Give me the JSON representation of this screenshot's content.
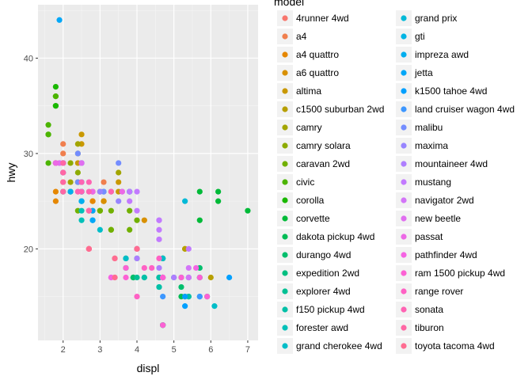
{
  "chart_data": {
    "type": "scatter",
    "title": "",
    "xlabel": "displ",
    "ylabel": "hwy",
    "xlim": [
      1.32,
      7.28
    ],
    "ylim": [
      10.4,
      45.6
    ],
    "x_ticks": [
      2,
      3,
      4,
      5,
      6,
      7
    ],
    "y_ticks": [
      20,
      30,
      40
    ],
    "grid": true,
    "legend_title": "model",
    "legend_placement": "right",
    "series": [
      {
        "name": "4runner 4wd",
        "color": "#F8766D",
        "points": [
          [
            2.7,
            20
          ],
          [
            2.7,
            20
          ],
          [
            3.4,
            19
          ],
          [
            3.4,
            17
          ],
          [
            4.0,
            20
          ],
          [
            4.7,
            17
          ]
        ]
      },
      {
        "name": "a4",
        "color": "#F07F4E",
        "points": [
          [
            1.8,
            29
          ],
          [
            1.8,
            29
          ],
          [
            2.0,
            31
          ],
          [
            2.0,
            30
          ],
          [
            2.8,
            26
          ],
          [
            2.8,
            26
          ],
          [
            3.1,
            27
          ]
        ]
      },
      {
        "name": "a4 quattro",
        "color": "#E58700",
        "points": [
          [
            1.8,
            26
          ],
          [
            1.8,
            25
          ],
          [
            2.0,
            28
          ],
          [
            2.0,
            27
          ],
          [
            2.8,
            25
          ],
          [
            2.8,
            25
          ],
          [
            3.1,
            25
          ],
          [
            3.1,
            25
          ]
        ]
      },
      {
        "name": "a6 quattro",
        "color": "#D89000",
        "points": [
          [
            2.8,
            24
          ],
          [
            3.1,
            25
          ],
          [
            4.2,
            23
          ]
        ]
      },
      {
        "name": "altima",
        "color": "#C99800",
        "points": [
          [
            2.4,
            27
          ],
          [
            2.4,
            29
          ],
          [
            2.5,
            31
          ],
          [
            2.5,
            32
          ],
          [
            3.5,
            27
          ],
          [
            3.5,
            26
          ]
        ]
      },
      {
        "name": "c1500 suburban 2wd",
        "color": "#B79F00",
        "points": [
          [
            5.3,
            20
          ],
          [
            5.3,
            15
          ],
          [
            5.3,
            20
          ],
          [
            5.7,
            17
          ],
          [
            6.0,
            17
          ]
        ]
      },
      {
        "name": "camry",
        "color": "#A3A500",
        "points": [
          [
            2.2,
            26
          ],
          [
            2.2,
            27
          ],
          [
            2.4,
            30
          ],
          [
            2.4,
            31
          ],
          [
            3.0,
            26
          ],
          [
            3.0,
            26
          ],
          [
            3.5,
            28
          ]
        ]
      },
      {
        "name": "camry solara",
        "color": "#8DAB00",
        "points": [
          [
            2.2,
            26
          ],
          [
            2.2,
            29
          ],
          [
            2.4,
            28
          ],
          [
            2.4,
            27
          ],
          [
            3.0,
            24
          ],
          [
            3.0,
            24
          ],
          [
            3.3,
            26
          ]
        ]
      },
      {
        "name": "caravan 2wd",
        "color": "#71B000",
        "points": [
          [
            2.4,
            24
          ],
          [
            3.0,
            24
          ],
          [
            3.3,
            22
          ],
          [
            3.3,
            22
          ],
          [
            3.3,
            24
          ],
          [
            3.8,
            24
          ],
          [
            3.8,
            22
          ],
          [
            4.0,
            23
          ]
        ]
      },
      {
        "name": "civic",
        "color": "#4CB400",
        "points": [
          [
            1.6,
            33
          ],
          [
            1.6,
            32
          ],
          [
            1.6,
            32
          ],
          [
            1.6,
            29
          ],
          [
            1.8,
            36
          ],
          [
            1.8,
            36
          ],
          [
            1.8,
            29
          ],
          [
            2.0,
            26
          ]
        ]
      },
      {
        "name": "corolla",
        "color": "#1AB800",
        "points": [
          [
            1.8,
            35
          ],
          [
            1.8,
            37
          ],
          [
            1.8,
            35
          ]
        ]
      },
      {
        "name": "corvette",
        "color": "#00BA38",
        "points": [
          [
            5.7,
            26
          ],
          [
            5.7,
            23
          ],
          [
            6.2,
            26
          ],
          [
            6.2,
            25
          ],
          [
            7.0,
            24
          ]
        ]
      },
      {
        "name": "dakota pickup 4wd",
        "color": "#00BC55",
        "points": [
          [
            3.7,
            19
          ],
          [
            3.7,
            18
          ],
          [
            3.9,
            17
          ],
          [
            3.9,
            17
          ],
          [
            4.7,
            19
          ],
          [
            4.7,
            19
          ],
          [
            4.7,
            12
          ],
          [
            5.2,
            17
          ],
          [
            5.2,
            15
          ]
        ]
      },
      {
        "name": "durango 4wd",
        "color": "#00BE6C",
        "points": [
          [
            3.9,
            17
          ],
          [
            4.7,
            17
          ],
          [
            4.7,
            12
          ],
          [
            4.7,
            17
          ],
          [
            5.2,
            16
          ],
          [
            5.7,
            18
          ],
          [
            5.9,
            15
          ]
        ]
      },
      {
        "name": "expedition 2wd",
        "color": "#00BF80",
        "points": [
          [
            4.6,
            17
          ],
          [
            5.4,
            17
          ],
          [
            5.4,
            15
          ]
        ]
      },
      {
        "name": "explorer 4wd",
        "color": "#00C094",
        "points": [
          [
            4.0,
            17
          ],
          [
            4.0,
            19
          ],
          [
            4.6,
            17
          ],
          [
            5.0,
            17
          ]
        ]
      },
      {
        "name": "f150 pickup 4wd",
        "color": "#00C0A7",
        "points": [
          [
            4.2,
            17
          ],
          [
            4.2,
            17
          ],
          [
            4.6,
            16
          ],
          [
            4.6,
            16
          ],
          [
            4.6,
            17
          ],
          [
            5.4,
            15
          ],
          [
            5.4,
            17
          ]
        ]
      },
      {
        "name": "forester awd",
        "color": "#00C0B8",
        "points": [
          [
            2.5,
            25
          ],
          [
            2.5,
            24
          ],
          [
            2.5,
            27
          ],
          [
            2.5,
            25
          ],
          [
            2.5,
            26
          ],
          [
            2.5,
            23
          ]
        ]
      },
      {
        "name": "grand cherokee 4wd",
        "color": "#00BDC8",
        "points": [
          [
            3.0,
            22
          ],
          [
            3.7,
            19
          ],
          [
            4.0,
            20
          ],
          [
            4.7,
            17
          ],
          [
            4.7,
            19
          ],
          [
            5.7,
            15
          ],
          [
            6.1,
            14
          ]
        ]
      },
      {
        "name": "grand prix",
        "color": "#00B9D7",
        "points": [
          [
            3.1,
            26
          ],
          [
            3.8,
            26
          ],
          [
            3.8,
            26
          ],
          [
            3.8,
            26
          ],
          [
            5.3,
            25
          ]
        ]
      },
      {
        "name": "gti",
        "color": "#00B4E4",
        "points": [
          [
            2.0,
            28
          ],
          [
            2.0,
            29
          ],
          [
            2.0,
            29
          ],
          [
            2.0,
            28
          ],
          [
            2.8,
            23
          ]
        ]
      },
      {
        "name": "impreza awd",
        "color": "#00AEEF",
        "points": [
          [
            2.2,
            26
          ],
          [
            2.2,
            26
          ],
          [
            2.5,
            26
          ],
          [
            2.5,
            26
          ],
          [
            2.5,
            26
          ],
          [
            2.5,
            25
          ],
          [
            2.5,
            27
          ],
          [
            2.5,
            25
          ]
        ]
      },
      {
        "name": "jetta",
        "color": "#00A7F8",
        "points": [
          [
            1.9,
            44
          ],
          [
            2.0,
            29
          ],
          [
            2.0,
            26
          ],
          [
            2.0,
            29
          ],
          [
            2.0,
            29
          ],
          [
            2.5,
            29
          ],
          [
            2.5,
            29
          ],
          [
            2.8,
            23
          ],
          [
            2.8,
            24
          ]
        ]
      },
      {
        "name": "k1500 tahoe 4wd",
        "color": "#00A0FF",
        "points": [
          [
            5.3,
            14
          ],
          [
            5.3,
            15
          ],
          [
            5.7,
            17
          ],
          [
            6.5,
            17
          ]
        ]
      },
      {
        "name": "land cruiser wagon 4wd",
        "color": "#3D97FF",
        "points": [
          [
            4.7,
            15
          ],
          [
            5.7,
            15
          ]
        ]
      },
      {
        "name": "malibu",
        "color": "#748DFF",
        "points": [
          [
            2.4,
            27
          ],
          [
            2.4,
            30
          ],
          [
            3.1,
            26
          ],
          [
            3.5,
            29
          ],
          [
            3.6,
            26
          ]
        ]
      },
      {
        "name": "maxima",
        "color": "#9785FF",
        "points": [
          [
            3.0,
            26
          ],
          [
            3.0,
            26
          ],
          [
            3.5,
            25
          ]
        ]
      },
      {
        "name": "mountaineer 4wd",
        "color": "#AE7EFF",
        "points": [
          [
            4.0,
            19
          ],
          [
            4.0,
            20
          ],
          [
            4.6,
            18
          ],
          [
            5.0,
            17
          ]
        ]
      },
      {
        "name": "mustang",
        "color": "#C27AFF",
        "points": [
          [
            3.8,
            26
          ],
          [
            3.8,
            25
          ],
          [
            4.0,
            26
          ],
          [
            4.0,
            24
          ],
          [
            4.6,
            21
          ],
          [
            4.6,
            22
          ],
          [
            4.6,
            23
          ],
          [
            4.6,
            23
          ],
          [
            5.4,
            20
          ]
        ]
      },
      {
        "name": "navigator 2wd",
        "color": "#D375F8",
        "points": [
          [
            5.4,
            17
          ],
          [
            5.4,
            17
          ],
          [
            5.4,
            18
          ]
        ]
      },
      {
        "name": "new beetle",
        "color": "#E06EF0",
        "points": [
          [
            1.9,
            29
          ],
          [
            1.9,
            29
          ],
          [
            2.0,
            28
          ],
          [
            2.0,
            29
          ],
          [
            2.5,
            29
          ],
          [
            2.5,
            29
          ]
        ]
      },
      {
        "name": "passat",
        "color": "#EC69E5",
        "points": [
          [
            1.8,
            29
          ],
          [
            1.8,
            29
          ],
          [
            2.0,
            28
          ],
          [
            2.0,
            29
          ],
          [
            2.8,
            26
          ],
          [
            2.8,
            26
          ],
          [
            3.6,
            26
          ]
        ]
      },
      {
        "name": "pathfinder 4wd",
        "color": "#F564E3",
        "points": [
          [
            3.3,
            17
          ],
          [
            3.3,
            17
          ],
          [
            4.0,
            20
          ],
          [
            5.6,
            18
          ]
        ]
      },
      {
        "name": "ram 1500 pickup 4wd",
        "color": "#FC61D4",
        "points": [
          [
            3.7,
            17
          ],
          [
            3.7,
            18
          ],
          [
            4.7,
            17
          ],
          [
            4.7,
            12
          ],
          [
            4.7,
            17
          ],
          [
            4.7,
            17
          ],
          [
            5.7,
            17
          ],
          [
            5.9,
            15
          ],
          [
            4.7,
            17
          ],
          [
            5.2,
            17
          ]
        ]
      },
      {
        "name": "range rover",
        "color": "#FF61C4",
        "points": [
          [
            4.0,
            15
          ],
          [
            4.2,
            18
          ],
          [
            4.4,
            18
          ],
          [
            4.6,
            19
          ]
        ]
      },
      {
        "name": "sonata",
        "color": "#FF63B3",
        "points": [
          [
            2.4,
            26
          ],
          [
            2.4,
            26
          ],
          [
            2.5,
            26
          ],
          [
            2.5,
            27
          ],
          [
            2.7,
            26
          ],
          [
            2.7,
            27
          ],
          [
            3.3,
            26
          ]
        ]
      },
      {
        "name": "tiburon",
        "color": "#FF67A4",
        "points": [
          [
            2.0,
            28
          ],
          [
            2.0,
            29
          ],
          [
            2.0,
            27
          ],
          [
            2.0,
            26
          ],
          [
            2.7,
            24
          ],
          [
            2.7,
            24
          ],
          [
            2.7,
            24
          ]
        ]
      },
      {
        "name": "toyota tacoma 4wd",
        "color": "#FF6C91",
        "points": [
          [
            2.7,
            20
          ],
          [
            2.7,
            20
          ],
          [
            2.7,
            20
          ],
          [
            3.4,
            19
          ],
          [
            3.4,
            17
          ],
          [
            4.0,
            20
          ],
          [
            4.0,
            20
          ]
        ]
      }
    ]
  }
}
